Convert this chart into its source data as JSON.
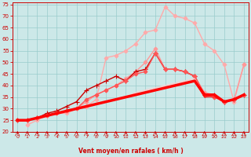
{
  "xlabel": "Vent moyen/en rafales ( km/h )",
  "background_color": "#cce8e8",
  "grid_color": "#99cccc",
  "xlim": [
    -0.5,
    23.5
  ],
  "ylim": [
    20,
    76
  ],
  "yticks": [
    20,
    25,
    30,
    35,
    40,
    45,
    50,
    55,
    60,
    65,
    70,
    75
  ],
  "xticks": [
    0,
    1,
    2,
    3,
    4,
    5,
    6,
    7,
    8,
    9,
    10,
    11,
    12,
    13,
    14,
    15,
    16,
    17,
    18,
    19,
    20,
    21,
    22,
    23
  ],
  "series": [
    {
      "x": [
        1,
        2,
        3,
        4,
        5,
        6,
        7,
        8,
        9,
        10,
        11,
        12,
        13,
        14,
        15,
        16,
        17,
        18,
        19,
        20,
        21,
        22,
        23
      ],
      "y": [
        23,
        25,
        27,
        28,
        28,
        30,
        31,
        34,
        52,
        53,
        55,
        58,
        63,
        64,
        74,
        70,
        69,
        67,
        58,
        55,
        49,
        33,
        49
      ],
      "color": "#ffaaaa",
      "lw": 1.0,
      "marker": "D",
      "ms": 2.5,
      "alpha": 1.0
    },
    {
      "x": [
        0,
        1,
        2,
        3,
        4,
        5,
        6,
        7,
        8,
        9,
        10,
        11,
        12,
        13,
        14,
        15,
        16,
        17,
        18,
        19,
        20,
        21,
        22,
        23
      ],
      "y": [
        25,
        25,
        26,
        27,
        28,
        29,
        30,
        33,
        36,
        38,
        40,
        43,
        46,
        50,
        56,
        47,
        47,
        46,
        44,
        37,
        36,
        33,
        34,
        49
      ],
      "color": "#ff9999",
      "lw": 1.0,
      "marker": "D",
      "ms": 2.5,
      "alpha": 1.0
    },
    {
      "x": [
        0,
        1,
        2,
        3,
        4,
        5,
        6,
        7,
        8,
        9,
        10,
        11,
        12,
        13,
        14,
        15,
        16,
        17,
        18,
        19,
        20,
        21,
        22,
        23
      ],
      "y": [
        25,
        25,
        26,
        28,
        29,
        31,
        33,
        38,
        40,
        42,
        44,
        42,
        46,
        47,
        54,
        47,
        47,
        46,
        44,
        36,
        36,
        33,
        34,
        36
      ],
      "color": "#cc0000",
      "lw": 1.0,
      "marker": "+",
      "ms": 4,
      "alpha": 1.0
    },
    {
      "x": [
        0,
        1,
        2,
        3,
        4,
        5,
        6,
        7,
        8,
        9,
        10,
        11,
        12,
        13,
        14,
        15,
        16,
        17,
        18,
        19,
        20,
        21,
        22,
        23
      ],
      "y": [
        25,
        25,
        26,
        27,
        28,
        29,
        30,
        34,
        36,
        38,
        40,
        42,
        45,
        46,
        54,
        47,
        47,
        46,
        44,
        36,
        35,
        33,
        34,
        36
      ],
      "color": "#ff5555",
      "lw": 1.0,
      "marker": "D",
      "ms": 2.5,
      "alpha": 1.0
    },
    {
      "x": [
        0,
        1,
        2,
        3,
        4,
        5,
        6,
        7,
        8,
        9,
        10,
        11,
        12,
        13,
        14,
        15,
        16,
        17,
        18,
        19,
        20,
        21,
        22,
        23
      ],
      "y": [
        25,
        25,
        26,
        27,
        28,
        29,
        30,
        31,
        32,
        33,
        34,
        35,
        36,
        37,
        38,
        39,
        40,
        41,
        42,
        35,
        36,
        33,
        34,
        36
      ],
      "color": "#ff3333",
      "lw": 1.0,
      "marker": null,
      "alpha": 0.9
    },
    {
      "x": [
        0,
        1,
        2,
        3,
        4,
        5,
        6,
        7,
        8,
        9,
        10,
        11,
        12,
        13,
        14,
        15,
        16,
        17,
        18,
        19,
        20,
        21,
        22,
        23
      ],
      "y": [
        25,
        25,
        26,
        27,
        28,
        29,
        30,
        31,
        32,
        33,
        34,
        35,
        37,
        38,
        39,
        40,
        41,
        42,
        43,
        36,
        36,
        33,
        34,
        36
      ],
      "color": "#ffcccc",
      "lw": 1.0,
      "marker": null,
      "alpha": 0.9
    },
    {
      "x": [
        0,
        1,
        2,
        3,
        4,
        5,
        6,
        7,
        8,
        9,
        10,
        11,
        12,
        13,
        14,
        15,
        16,
        17,
        18,
        19,
        20,
        21,
        22,
        23
      ],
      "y": [
        25,
        25,
        26,
        27,
        28,
        29,
        30,
        31,
        32,
        33,
        34,
        35,
        36,
        37,
        38,
        39,
        40,
        41,
        42,
        36,
        36,
        33,
        34,
        36
      ],
      "color": "#ff0000",
      "lw": 2.5,
      "marker": null,
      "alpha": 1.0
    },
    {
      "x": [
        0,
        1,
        2,
        3,
        4,
        5,
        6,
        7,
        8,
        9,
        10,
        11,
        12,
        13,
        14,
        15,
        16,
        17,
        18,
        19,
        20,
        21,
        22,
        23
      ],
      "y": [
        25,
        25,
        26,
        27,
        28,
        29,
        30,
        31,
        32,
        33,
        34,
        35,
        36,
        37,
        38,
        39,
        40,
        41,
        42,
        35,
        35,
        33,
        34,
        36
      ],
      "color": "#ff0000",
      "lw": 1.0,
      "marker": null,
      "alpha": 0.6
    }
  ]
}
